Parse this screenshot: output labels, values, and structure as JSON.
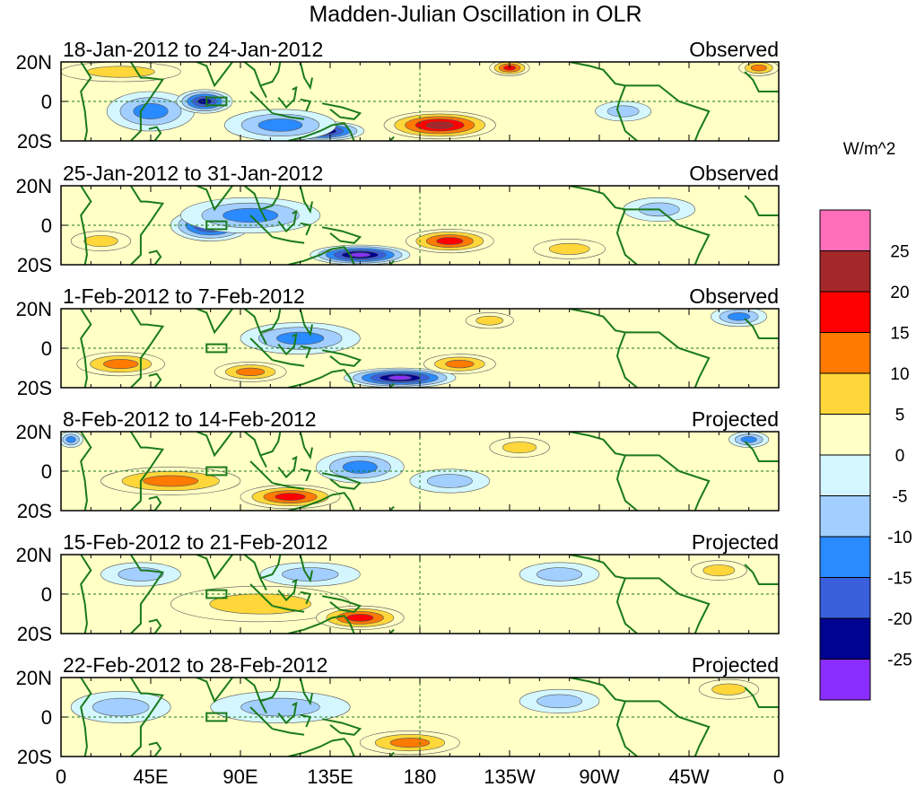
{
  "chart_data": {
    "type": "heatmap",
    "title": "Madden-Julian Oscillation in OLR",
    "colorbar": {
      "units": "W/m^2",
      "tick_labels": [
        "25",
        "20",
        "15",
        "10",
        "5",
        "0",
        "-5",
        "-10",
        "-15",
        "-20",
        "-25"
      ],
      "levels": [
        {
          "min": 25,
          "max": null,
          "color": "#ff6eb9"
        },
        {
          "min": 20,
          "max": 25,
          "color": "#a2282a"
        },
        {
          "min": 15,
          "max": 20,
          "color": "#ff0000"
        },
        {
          "min": 10,
          "max": 15,
          "color": "#ff7a00"
        },
        {
          "min": 5,
          "max": 10,
          "color": "#ffd73a"
        },
        {
          "min": 0,
          "max": 5,
          "color": "#ffffc6"
        },
        {
          "min": -5,
          "max": 0,
          "color": "#d4f7ff"
        },
        {
          "min": -10,
          "max": -5,
          "color": "#a2cfff"
        },
        {
          "min": -15,
          "max": -10,
          "color": "#2a8aff"
        },
        {
          "min": -20,
          "max": -15,
          "color": "#3a5fdc"
        },
        {
          "min": -25,
          "max": -20,
          "color": "#00038f"
        },
        {
          "min": null,
          "max": -25,
          "color": "#8a2eff"
        }
      ]
    },
    "x_ticks": [
      "0",
      "45E",
      "90E",
      "135E",
      "180",
      "135W",
      "90W",
      "45W",
      "0"
    ],
    "y_ticks": [
      "20N",
      "0",
      "20S"
    ],
    "lon_range": [
      0,
      360
    ],
    "lat_range": [
      -20,
      20
    ],
    "panels": [
      {
        "period": "18-Jan-2012 to 24-Jan-2012",
        "status": "Observed",
        "features": [
          {
            "lon": 45,
            "lat": -5,
            "value": -12,
            "rx": 22,
            "ry": 10
          },
          {
            "lon": 72,
            "lat": 0,
            "value": -24,
            "rx": 14,
            "ry": 6
          },
          {
            "lon": 130,
            "lat": -15,
            "value": -27,
            "rx": 22,
            "ry": 5
          },
          {
            "lon": 110,
            "lat": -12,
            "value": -12,
            "rx": 28,
            "ry": 8
          },
          {
            "lon": 190,
            "lat": -12,
            "value": 24,
            "rx": 28,
            "ry": 7
          },
          {
            "lon": 225,
            "lat": 17,
            "value": 15,
            "rx": 10,
            "ry": 4
          },
          {
            "lon": 282,
            "lat": -5,
            "value": -8,
            "rx": 14,
            "ry": 5
          },
          {
            "lon": 350,
            "lat": 17,
            "value": 12,
            "rx": 10,
            "ry": 4
          },
          {
            "lon": 30,
            "lat": 15,
            "value": 6,
            "rx": 30,
            "ry": 5
          }
        ]
      },
      {
        "period": "25-Jan-2012 to 31-Jan-2012",
        "status": "Observed",
        "features": [
          {
            "lon": 75,
            "lat": 0,
            "value": -22,
            "rx": 20,
            "ry": 8
          },
          {
            "lon": 95,
            "lat": 5,
            "value": -12,
            "rx": 35,
            "ry": 9
          },
          {
            "lon": 150,
            "lat": -15,
            "value": -27,
            "rx": 25,
            "ry": 5
          },
          {
            "lon": 195,
            "lat": -8,
            "value": 16,
            "rx": 22,
            "ry": 6
          },
          {
            "lon": 20,
            "lat": -8,
            "value": 8,
            "rx": 15,
            "ry": 5
          },
          {
            "lon": 300,
            "lat": 8,
            "value": -8,
            "rx": 18,
            "ry": 6
          },
          {
            "lon": 255,
            "lat": -12,
            "value": 7,
            "rx": 18,
            "ry": 5
          }
        ]
      },
      {
        "period": "1-Feb-2012 to 7-Feb-2012",
        "status": "Observed",
        "features": [
          {
            "lon": 30,
            "lat": -8,
            "value": 12,
            "rx": 22,
            "ry": 6
          },
          {
            "lon": 95,
            "lat": -12,
            "value": 10,
            "rx": 18,
            "ry": 5
          },
          {
            "lon": 120,
            "lat": 5,
            "value": -10,
            "rx": 30,
            "ry": 8
          },
          {
            "lon": 170,
            "lat": -15,
            "value": -25,
            "rx": 28,
            "ry": 5
          },
          {
            "lon": 200,
            "lat": -8,
            "value": 12,
            "rx": 18,
            "ry": 5
          },
          {
            "lon": 215,
            "lat": 14,
            "value": 9,
            "rx": 12,
            "ry": 4
          },
          {
            "lon": 340,
            "lat": 16,
            "value": -14,
            "rx": 14,
            "ry": 5
          }
        ]
      },
      {
        "period": "8-Feb-2012 to 14-Feb-2012",
        "status": "Projected",
        "features": [
          {
            "lon": 55,
            "lat": -5,
            "value": 12,
            "rx": 35,
            "ry": 7
          },
          {
            "lon": 115,
            "lat": -13,
            "value": 16,
            "rx": 25,
            "ry": 6
          },
          {
            "lon": 150,
            "lat": 2,
            "value": -10,
            "rx": 22,
            "ry": 8
          },
          {
            "lon": 230,
            "lat": 12,
            "value": 9,
            "rx": 15,
            "ry": 5
          },
          {
            "lon": 195,
            "lat": -5,
            "value": -6,
            "rx": 20,
            "ry": 6
          },
          {
            "lon": 345,
            "lat": 16,
            "value": -12,
            "rx": 10,
            "ry": 4
          },
          {
            "lon": 5,
            "lat": 16,
            "value": -10,
            "rx": 6,
            "ry": 4
          }
        ]
      },
      {
        "period": "15-Feb-2012 to 21-Feb-2012",
        "status": "Projected",
        "features": [
          {
            "lon": 100,
            "lat": -5,
            "value": 7,
            "rx": 45,
            "ry": 9
          },
          {
            "lon": 150,
            "lat": -12,
            "value": 16,
            "rx": 22,
            "ry": 6
          },
          {
            "lon": 125,
            "lat": 10,
            "value": -8,
            "rx": 25,
            "ry": 6
          },
          {
            "lon": 40,
            "lat": 10,
            "value": -7,
            "rx": 20,
            "ry": 6
          },
          {
            "lon": 330,
            "lat": 12,
            "value": 9,
            "rx": 14,
            "ry": 5
          },
          {
            "lon": 250,
            "lat": 10,
            "value": -6,
            "rx": 20,
            "ry": 6
          }
        ]
      },
      {
        "period": "22-Feb-2012 to 28-Feb-2012",
        "status": "Projected",
        "features": [
          {
            "lon": 175,
            "lat": -13,
            "value": 11,
            "rx": 25,
            "ry": 6
          },
          {
            "lon": 110,
            "lat": 5,
            "value": -6,
            "rx": 35,
            "ry": 8
          },
          {
            "lon": 30,
            "lat": 5,
            "value": -7,
            "rx": 25,
            "ry": 8
          },
          {
            "lon": 250,
            "lat": 8,
            "value": -6,
            "rx": 20,
            "ry": 6
          },
          {
            "lon": 335,
            "lat": 14,
            "value": 7,
            "rx": 15,
            "ry": 5
          }
        ]
      }
    ]
  }
}
